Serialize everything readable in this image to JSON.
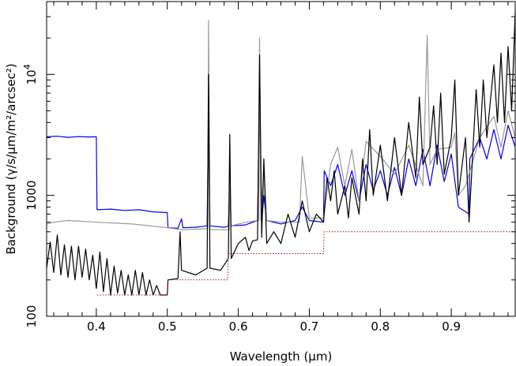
{
  "chart_data": {
    "type": "line",
    "title": "",
    "xlabel": "Wavelength (μm)",
    "ylabel": "Background (γ/s/μm/m²/arcsec²)",
    "xscale": "linear",
    "yscale": "log",
    "xlim": [
      0.33,
      0.99
    ],
    "ylim": [
      100,
      40000
    ],
    "x_ticks": [
      {
        "value": 0.4,
        "label": "0.4"
      },
      {
        "value": 0.5,
        "label": "0.5"
      },
      {
        "value": 0.6,
        "label": "0.6"
      },
      {
        "value": 0.7,
        "label": "0.7"
      },
      {
        "value": 0.8,
        "label": "0.8"
      },
      {
        "value": 0.9,
        "label": "0.9"
      }
    ],
    "y_ticks": [
      {
        "value": 100,
        "label": "100",
        "exp": ""
      },
      {
        "value": 1000,
        "label": "1000",
        "exp": ""
      },
      {
        "value": 10000,
        "label": "10",
        "exp": "4"
      }
    ],
    "grid": false,
    "legend": "none",
    "series": [
      {
        "color": "#0000ee",
        "points": [
          [
            0.33,
            3050
          ],
          [
            0.345,
            3080
          ],
          [
            0.36,
            3020
          ],
          [
            0.375,
            3060
          ],
          [
            0.39,
            3040
          ],
          [
            0.4,
            3050
          ],
          [
            0.401,
            760
          ],
          [
            0.42,
            770
          ],
          [
            0.44,
            750
          ],
          [
            0.46,
            760
          ],
          [
            0.48,
            730
          ],
          [
            0.5,
            720
          ],
          [
            0.501,
            540
          ],
          [
            0.515,
            535
          ],
          [
            0.52,
            640
          ],
          [
            0.522,
            540
          ],
          [
            0.54,
            545
          ],
          [
            0.556,
            560
          ],
          [
            0.558,
            4200
          ],
          [
            0.56,
            560
          ],
          [
            0.58,
            545
          ],
          [
            0.586,
            555
          ],
          [
            0.588,
            1250
          ],
          [
            0.59,
            560
          ],
          [
            0.61,
            570
          ],
          [
            0.627,
            620
          ],
          [
            0.63,
            5500
          ],
          [
            0.633,
            600
          ],
          [
            0.636,
            1000
          ],
          [
            0.64,
            620
          ],
          [
            0.66,
            580
          ],
          [
            0.68,
            620
          ],
          [
            0.69,
            800
          ],
          [
            0.7,
            620
          ],
          [
            0.72,
            600
          ],
          [
            0.721,
            1600
          ],
          [
            0.73,
            1200
          ],
          [
            0.74,
            1800
          ],
          [
            0.75,
            1000
          ],
          [
            0.76,
            1600
          ],
          [
            0.77,
            900
          ],
          [
            0.78,
            1800
          ],
          [
            0.79,
            1100
          ],
          [
            0.8,
            1600
          ],
          [
            0.81,
            1000
          ],
          [
            0.82,
            1700
          ],
          [
            0.83,
            1000
          ],
          [
            0.84,
            2000
          ],
          [
            0.85,
            1200
          ],
          [
            0.86,
            2400
          ],
          [
            0.87,
            1200
          ],
          [
            0.88,
            2600
          ],
          [
            0.89,
            1300
          ],
          [
            0.9,
            2200
          ],
          [
            0.91,
            800
          ],
          [
            0.925,
            700
          ],
          [
            0.926,
            2000
          ],
          [
            0.94,
            3000
          ],
          [
            0.95,
            2000
          ],
          [
            0.96,
            3500
          ],
          [
            0.97,
            2000
          ],
          [
            0.98,
            3800
          ],
          [
            0.99,
            2500
          ]
        ]
      },
      {
        "color": "#999999",
        "points": [
          [
            0.33,
            580
          ],
          [
            0.34,
            600
          ],
          [
            0.36,
            620
          ],
          [
            0.4,
            600
          ],
          [
            0.45,
            580
          ],
          [
            0.5,
            540
          ],
          [
            0.52,
            520
          ],
          [
            0.557,
            530
          ],
          [
            0.558,
            28000
          ],
          [
            0.56,
            520
          ],
          [
            0.587,
            520
          ],
          [
            0.588,
            1400
          ],
          [
            0.59,
            560
          ],
          [
            0.61,
            600
          ],
          [
            0.629,
            620
          ],
          [
            0.63,
            20000
          ],
          [
            0.632,
            620
          ],
          [
            0.636,
            1800
          ],
          [
            0.64,
            620
          ],
          [
            0.66,
            600
          ],
          [
            0.686,
            600
          ],
          [
            0.69,
            2100
          ],
          [
            0.7,
            650
          ],
          [
            0.72,
            650
          ],
          [
            0.73,
            1800
          ],
          [
            0.74,
            2500
          ],
          [
            0.75,
            1200
          ],
          [
            0.76,
            2400
          ],
          [
            0.77,
            900
          ],
          [
            0.78,
            2800
          ],
          [
            0.8,
            2100
          ],
          [
            0.82,
            1500
          ],
          [
            0.84,
            2600
          ],
          [
            0.86,
            1200
          ],
          [
            0.866,
            21000
          ],
          [
            0.87,
            1800
          ],
          [
            0.88,
            2400
          ],
          [
            0.9,
            2500
          ],
          [
            0.905,
            3300
          ],
          [
            0.91,
            1000
          ],
          [
            0.92,
            1200
          ],
          [
            0.94,
            3000
          ],
          [
            0.96,
            4500
          ],
          [
            0.97,
            2500
          ],
          [
            0.98,
            5000
          ],
          [
            0.99,
            3000
          ]
        ]
      },
      {
        "color": "#000000",
        "points": [
          [
            0.33,
            250
          ],
          [
            0.335,
            410
          ],
          [
            0.34,
            230
          ],
          [
            0.345,
            470
          ],
          [
            0.35,
            220
          ],
          [
            0.355,
            390
          ],
          [
            0.36,
            210
          ],
          [
            0.365,
            380
          ],
          [
            0.37,
            200
          ],
          [
            0.375,
            380
          ],
          [
            0.38,
            210
          ],
          [
            0.385,
            360
          ],
          [
            0.39,
            200
          ],
          [
            0.395,
            320
          ],
          [
            0.4,
            170
          ],
          [
            0.405,
            340
          ],
          [
            0.41,
            160
          ],
          [
            0.415,
            300
          ],
          [
            0.42,
            150
          ],
          [
            0.425,
            260
          ],
          [
            0.43,
            155
          ],
          [
            0.435,
            240
          ],
          [
            0.44,
            150
          ],
          [
            0.445,
            220
          ],
          [
            0.45,
            150
          ],
          [
            0.455,
            240
          ],
          [
            0.46,
            150
          ],
          [
            0.465,
            230
          ],
          [
            0.47,
            150
          ],
          [
            0.475,
            200
          ],
          [
            0.48,
            150
          ],
          [
            0.485,
            180
          ],
          [
            0.49,
            150
          ],
          [
            0.5,
            150
          ],
          [
            0.501,
            200
          ],
          [
            0.515,
            205
          ],
          [
            0.518,
            500
          ],
          [
            0.52,
            240
          ],
          [
            0.54,
            220
          ],
          [
            0.556,
            250
          ],
          [
            0.558,
            10000
          ],
          [
            0.56,
            250
          ],
          [
            0.575,
            240
          ],
          [
            0.586,
            300
          ],
          [
            0.588,
            3200
          ],
          [
            0.59,
            300
          ],
          [
            0.6,
            400
          ],
          [
            0.61,
            450
          ],
          [
            0.615,
            350
          ],
          [
            0.62,
            420
          ],
          [
            0.627,
            430
          ],
          [
            0.63,
            14500
          ],
          [
            0.633,
            450
          ],
          [
            0.636,
            2000
          ],
          [
            0.64,
            400
          ],
          [
            0.65,
            500
          ],
          [
            0.66,
            400
          ],
          [
            0.67,
            700
          ],
          [
            0.68,
            450
          ],
          [
            0.69,
            900
          ],
          [
            0.7,
            500
          ],
          [
            0.71,
            700
          ],
          [
            0.72,
            600
          ],
          [
            0.725,
            1400
          ],
          [
            0.73,
            900
          ],
          [
            0.735,
            1600
          ],
          [
            0.74,
            700
          ],
          [
            0.75,
            1200
          ],
          [
            0.755,
            650
          ],
          [
            0.76,
            1400
          ],
          [
            0.77,
            700
          ],
          [
            0.775,
            2000
          ],
          [
            0.78,
            900
          ],
          [
            0.785,
            3500
          ],
          [
            0.79,
            1000
          ],
          [
            0.8,
            2600
          ],
          [
            0.81,
            900
          ],
          [
            0.82,
            3000
          ],
          [
            0.83,
            1000
          ],
          [
            0.84,
            4000
          ],
          [
            0.85,
            1400
          ],
          [
            0.855,
            6500
          ],
          [
            0.86,
            1800
          ],
          [
            0.87,
            2500
          ],
          [
            0.875,
            5500
          ],
          [
            0.88,
            1800
          ],
          [
            0.885,
            7000
          ],
          [
            0.89,
            1500
          ],
          [
            0.9,
            3000
          ],
          [
            0.905,
            9000
          ],
          [
            0.91,
            1000
          ],
          [
            0.92,
            3000
          ],
          [
            0.925,
            600
          ],
          [
            0.935,
            7500
          ],
          [
            0.94,
            2500
          ],
          [
            0.945,
            9000
          ],
          [
            0.95,
            3000
          ],
          [
            0.96,
            12000
          ],
          [
            0.965,
            4000
          ],
          [
            0.97,
            15000
          ],
          [
            0.975,
            4000
          ],
          [
            0.98,
            17000
          ],
          [
            0.985,
            5000
          ],
          [
            0.99,
            33000
          ]
        ]
      }
    ],
    "continuum": {
      "color": "#cc0000",
      "points": [
        [
          0.33,
          0
        ],
        [
          0.4,
          0
        ],
        [
          0.401,
          150
        ],
        [
          0.5,
          150
        ],
        [
          0.501,
          200
        ],
        [
          0.585,
          200
        ],
        [
          0.586,
          330
        ],
        [
          0.72,
          330
        ],
        [
          0.721,
          500
        ],
        [
          0.99,
          500
        ]
      ]
    }
  }
}
